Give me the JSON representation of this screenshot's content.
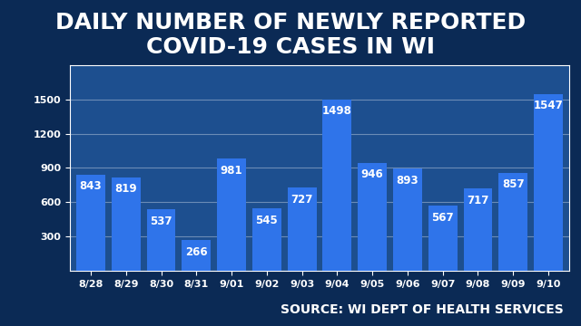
{
  "chart_data": {
    "type": "bar",
    "title": "DAILY NUMBER OF NEWLY REPORTED COVID-19 CASES IN WI",
    "categories": [
      "8/28",
      "8/29",
      "8/30",
      "8/31",
      "9/01",
      "9/02",
      "9/03",
      "9/04",
      "9/05",
      "9/06",
      "9/07",
      "9/08",
      "9/09",
      "9/10"
    ],
    "values": [
      843,
      819,
      537,
      266,
      981,
      545,
      727,
      1498,
      946,
      893,
      567,
      717,
      857,
      1547
    ],
    "color": "#2f74ea",
    "ylim": [
      0,
      1800
    ],
    "yticks": [
      300,
      600,
      900,
      1200,
      1500
    ],
    "grid": true,
    "data_labels": true,
    "annotations": [
      "SOURCE: WI DEPT OF HEALTH SERVICES"
    ]
  }
}
